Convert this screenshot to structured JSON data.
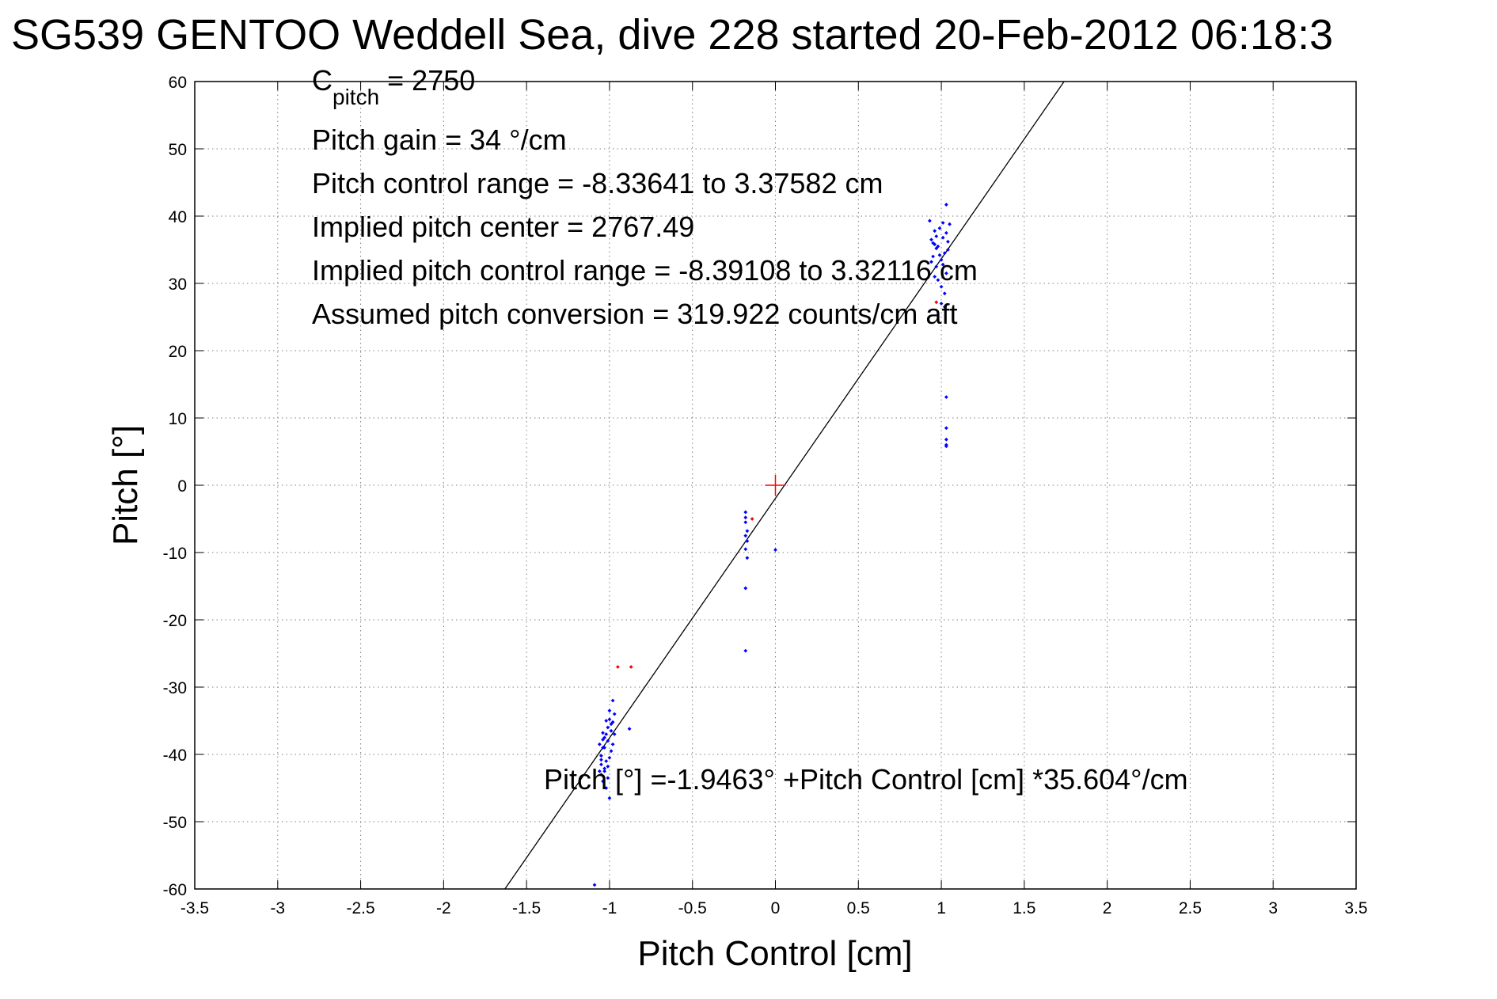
{
  "chart_data": {
    "type": "scatter",
    "title": "SG539 GENTOO Weddell Sea, dive 228 started 20-Feb-2012 06:18:3",
    "xlabel": "Pitch Control [cm]",
    "ylabel": "Pitch [°]",
    "xlim": [
      -3.5,
      3.5
    ],
    "ylim": [
      -60,
      60
    ],
    "xticks": [
      -3.5,
      -3,
      -2.5,
      -2,
      -1.5,
      -1,
      -0.5,
      0,
      0.5,
      1,
      1.5,
      2,
      2.5,
      3,
      3.5
    ],
    "xtick_labels": [
      "-3.5",
      "-3",
      "-2.5",
      "-2",
      "-1.5",
      "-1",
      "-0.5",
      "0",
      "0.5",
      "1",
      "1.5",
      "2",
      "2.5",
      "3",
      "3.5"
    ],
    "yticks": [
      -60,
      -50,
      -40,
      -30,
      -20,
      -10,
      0,
      10,
      20,
      30,
      40,
      50,
      60
    ],
    "ytick_labels": [
      "-60",
      "-50",
      "-40",
      "-30",
      "-20",
      "-10",
      "0",
      "10",
      "20",
      "30",
      "40",
      "50",
      "60"
    ],
    "grid": true,
    "annotations": {
      "c_pitch_main": "C",
      "c_pitch_sub": "pitch",
      "c_pitch_value": " = 2750",
      "lines": [
        "Pitch gain = 34 °/cm",
        "Pitch control range = -8.33641 to 3.37582 cm",
        "Implied pitch center = 2767.49",
        "Implied pitch control range = -8.39108 to 3.32116 cm",
        "Assumed pitch conversion = 319.922 counts/cm aft"
      ],
      "fit_equation": "Pitch [°] =-1.9463° +Pitch Control [cm] *35.604°/cm"
    },
    "fit_line": {
      "intercept": -1.9463,
      "slope": 35.604
    },
    "center_marker": {
      "x": 0,
      "y": 0,
      "color": "#ff0000"
    },
    "colors": {
      "points": "#0000ff",
      "excluded_points": "#ff0000",
      "fit_line": "#000000",
      "grid": "#808080"
    },
    "series": [
      {
        "color": "#0000ff",
        "points": [
          [
            -1.09,
            -59.4
          ],
          [
            -1.06,
            -38.5
          ],
          [
            -1.05,
            -40.2
          ],
          [
            -1.04,
            -36.8
          ],
          [
            -1.03,
            -42.1
          ],
          [
            -1.02,
            -35.0
          ],
          [
            -1.01,
            -38.0
          ],
          [
            -1.0,
            -33.5
          ],
          [
            -0.99,
            -39.5
          ],
          [
            -0.98,
            -32.0
          ],
          [
            -0.97,
            -37.0
          ],
          [
            -1.05,
            -41.5
          ],
          [
            -1.04,
            -39.0
          ],
          [
            -1.03,
            -37.5
          ],
          [
            -1.02,
            -41.0
          ],
          [
            -1.01,
            -36.0
          ],
          [
            -1.0,
            -40.5
          ],
          [
            -0.99,
            -35.5
          ],
          [
            -0.98,
            -38.5
          ],
          [
            -0.97,
            -34.0
          ],
          [
            -1.05,
            -43.0
          ],
          [
            -1.04,
            -44.0
          ],
          [
            -1.03,
            -42.5
          ],
          [
            -1.02,
            -45.0
          ],
          [
            -1.01,
            -43.5
          ],
          [
            -1.0,
            -46.5
          ],
          [
            -1.03,
            -39.0
          ],
          [
            -1.02,
            -37.0
          ],
          [
            -1.01,
            -41.8
          ],
          [
            -1.0,
            -34.8
          ],
          [
            -0.99,
            -36.5
          ],
          [
            -0.98,
            -35.2
          ],
          [
            -1.04,
            -37.8
          ],
          [
            -1.06,
            -42.5
          ],
          [
            -1.05,
            -40.8
          ],
          [
            -0.88,
            -36.2
          ],
          [
            -0.18,
            -4.0
          ],
          [
            -0.18,
            -4.8
          ],
          [
            -0.18,
            -5.5
          ],
          [
            -0.17,
            -6.8
          ],
          [
            -0.18,
            -7.5
          ],
          [
            -0.17,
            -8.3
          ],
          [
            -0.18,
            -9.5
          ],
          [
            -0.17,
            -10.8
          ],
          [
            -0.18,
            -15.3
          ],
          [
            -0.18,
            -24.6
          ],
          [
            0.0,
            -9.6
          ],
          [
            0.93,
            39.3
          ],
          [
            0.94,
            36.5
          ],
          [
            0.95,
            34.0
          ],
          [
            0.96,
            37.8
          ],
          [
            0.97,
            32.5
          ],
          [
            0.98,
            35.5
          ],
          [
            0.99,
            38.2
          ],
          [
            1.0,
            33.5
          ],
          [
            1.01,
            36.8
          ],
          [
            1.02,
            34.5
          ],
          [
            1.03,
            37.5
          ],
          [
            1.04,
            35.0
          ],
          [
            1.05,
            38.8
          ],
          [
            0.94,
            33.2
          ],
          [
            0.95,
            36.0
          ],
          [
            0.96,
            31.0
          ],
          [
            0.97,
            35.2
          ],
          [
            0.98,
            30.5
          ],
          [
            0.99,
            34.2
          ],
          [
            1.0,
            29.5
          ],
          [
            1.01,
            32.8
          ],
          [
            1.02,
            28.5
          ],
          [
            1.03,
            31.5
          ],
          [
            1.0,
            27.0
          ],
          [
            1.02,
            26.5
          ],
          [
            1.03,
            41.7
          ],
          [
            0.97,
            37.0
          ],
          [
            1.01,
            39.0
          ],
          [
            0.96,
            35.8
          ],
          [
            1.04,
            36.2
          ],
          [
            1.03,
            13.1
          ],
          [
            1.03,
            8.5
          ],
          [
            1.03,
            6.8
          ],
          [
            1.03,
            6.0
          ],
          [
            1.03,
            5.8
          ]
        ]
      },
      {
        "color": "#ff0000",
        "points": [
          [
            -0.95,
            -27.0
          ],
          [
            -0.87,
            -27.0
          ],
          [
            -0.14,
            -5.0
          ],
          [
            0.97,
            27.2
          ]
        ]
      }
    ]
  }
}
